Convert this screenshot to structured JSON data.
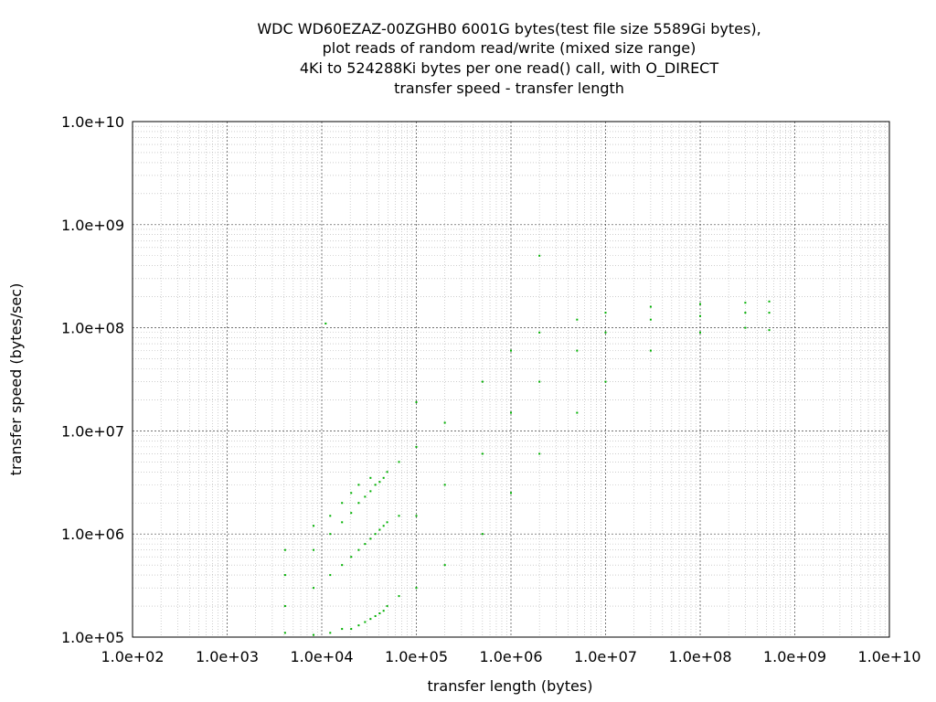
{
  "chart_data": {
    "type": "scatter",
    "title_lines": [
      "WDC WD60EZAZ-00ZGHB0 6001G bytes(test file size 5589Gi bytes),",
      "plot reads of random read/write (mixed size range)",
      "4Ki to 524288Ki bytes per one read() call, with O_DIRECT",
      "transfer speed - transfer length"
    ],
    "xlabel": "transfer length (bytes)",
    "ylabel": "transfer speed (bytes/sec)",
    "x_scale": "log",
    "y_scale": "log",
    "xlim": [
      100,
      10000000000
    ],
    "ylim": [
      100000,
      10000000000
    ],
    "x_ticks": [
      {
        "value": 100,
        "label": "1.0e+02"
      },
      {
        "value": 1000,
        "label": "1.0e+03"
      },
      {
        "value": 10000,
        "label": "1.0e+04"
      },
      {
        "value": 100000,
        "label": "1.0e+05"
      },
      {
        "value": 1000000,
        "label": "1.0e+06"
      },
      {
        "value": 10000000,
        "label": "1.0e+07"
      },
      {
        "value": 100000000,
        "label": "1.0e+08"
      },
      {
        "value": 1000000000,
        "label": "1.0e+09"
      },
      {
        "value": 10000000000,
        "label": "1.0e+10"
      }
    ],
    "y_ticks": [
      {
        "value": 100000,
        "label": "1.0e+05"
      },
      {
        "value": 1000000,
        "label": "1.0e+06"
      },
      {
        "value": 10000000,
        "label": "1.0e+07"
      },
      {
        "value": 100000000,
        "label": "1.0e+08"
      },
      {
        "value": 1000000000,
        "label": "1.0e+09"
      },
      {
        "value": 10000000000,
        "label": "1.0e+10"
      }
    ],
    "grid": true,
    "minor_grid": true,
    "point_color": "#00b000",
    "series": [
      {
        "values": [
          [
            4096,
            110000
          ],
          [
            4096,
            200000
          ],
          [
            4096,
            400000
          ],
          [
            4096,
            700000
          ],
          [
            8192,
            105000
          ],
          [
            8192,
            300000
          ],
          [
            8192,
            700000
          ],
          [
            8192,
            1200000
          ],
          [
            12288,
            110000
          ],
          [
            12288,
            400000
          ],
          [
            12288,
            1000000
          ],
          [
            12288,
            1500000
          ],
          [
            16384,
            120000
          ],
          [
            16384,
            500000
          ],
          [
            16384,
            1300000
          ],
          [
            16384,
            2000000
          ],
          [
            20480,
            120000
          ],
          [
            20480,
            600000
          ],
          [
            20480,
            1600000
          ],
          [
            20480,
            2500000
          ],
          [
            24576,
            130000
          ],
          [
            24576,
            700000
          ],
          [
            24576,
            2000000
          ],
          [
            24576,
            3000000
          ],
          [
            28672,
            140000
          ],
          [
            28672,
            800000
          ],
          [
            28672,
            2300000
          ],
          [
            32768,
            150000
          ],
          [
            32768,
            900000
          ],
          [
            32768,
            2600000
          ],
          [
            32768,
            3500000
          ],
          [
            36864,
            160000
          ],
          [
            36864,
            1000000
          ],
          [
            36864,
            3000000
          ],
          [
            40960,
            170000
          ],
          [
            40960,
            1100000
          ],
          [
            40960,
            3200000
          ],
          [
            45056,
            180000
          ],
          [
            45056,
            1200000
          ],
          [
            45056,
            3500000
          ],
          [
            49152,
            200000
          ],
          [
            49152,
            1300000
          ],
          [
            49152,
            4000000
          ],
          [
            65536,
            250000
          ],
          [
            65536,
            1500000
          ],
          [
            65536,
            5000000
          ],
          [
            100000,
            19000000
          ],
          [
            11000,
            110000000
          ],
          [
            2000000,
            500000000
          ],
          [
            100000,
            300000
          ],
          [
            100000,
            1500000
          ],
          [
            100000,
            7000000
          ],
          [
            200000,
            500000
          ],
          [
            200000,
            3000000
          ],
          [
            200000,
            12000000
          ],
          [
            500000,
            1000000
          ],
          [
            500000,
            6000000
          ],
          [
            500000,
            30000000
          ],
          [
            1000000,
            2500000
          ],
          [
            1000000,
            15000000
          ],
          [
            1000000,
            60000000
          ],
          [
            2000000,
            6000000
          ],
          [
            2000000,
            30000000
          ],
          [
            2000000,
            90000000
          ],
          [
            5000000,
            15000000
          ],
          [
            5000000,
            60000000
          ],
          [
            5000000,
            120000000
          ],
          [
            10000000,
            30000000
          ],
          [
            10000000,
            90000000
          ],
          [
            10000000,
            140000000
          ],
          [
            30000000,
            60000000
          ],
          [
            30000000,
            120000000
          ],
          [
            30000000,
            160000000
          ],
          [
            100000000,
            90000000
          ],
          [
            100000000,
            130000000
          ],
          [
            100000000,
            170000000
          ],
          [
            300000000,
            100000000
          ],
          [
            300000000,
            140000000
          ],
          [
            300000000,
            175000000
          ],
          [
            536870912,
            95000000
          ],
          [
            536870912,
            140000000
          ],
          [
            536870912,
            180000000
          ]
        ]
      }
    ]
  }
}
